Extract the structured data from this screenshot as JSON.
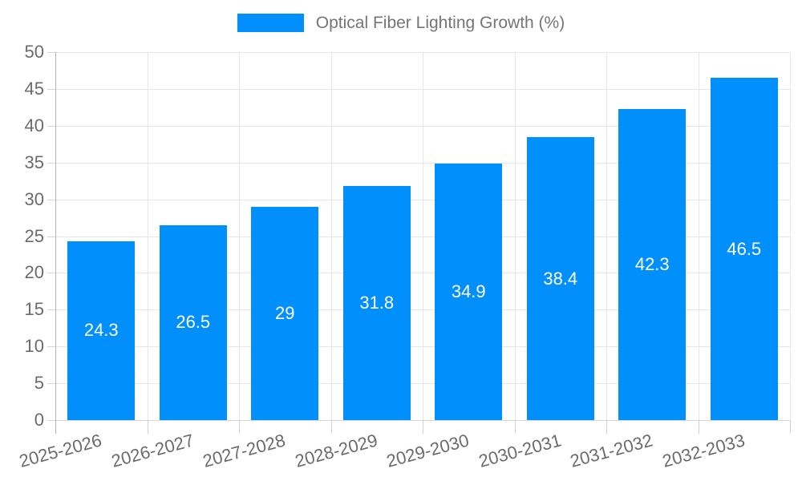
{
  "legend": {
    "label": "Optical Fiber Lighting Growth (%)",
    "swatch_color": "#008FFB"
  },
  "chart_data": {
    "type": "bar",
    "title": "Optical Fiber Lighting Growth (%)",
    "series_name": "Optical Fiber Lighting Growth (%)",
    "categories": [
      "2025-2026",
      "2026-2027",
      "2027-2028",
      "2028-2029",
      "2029-2030",
      "2030-2031",
      "2031-2032",
      "2032-2033"
    ],
    "values": [
      24.3,
      26.5,
      29,
      31.8,
      34.9,
      38.4,
      42.3,
      46.5
    ],
    "data_labels": [
      "24.3",
      "26.5",
      "29",
      "31.8",
      "34.9",
      "38.4",
      "42.3",
      "46.5"
    ],
    "yticks": [
      0,
      5,
      10,
      15,
      20,
      25,
      30,
      35,
      40,
      45,
      50
    ],
    "ylim": [
      0,
      50
    ],
    "ytick_step": 5,
    "xlabel": "",
    "ylabel": "",
    "grid": true,
    "legend_position": "top",
    "bar_color": "#008FFB",
    "data_label_color": "#ffffff",
    "axis_label_color": "#6b6b6b",
    "grid_color": "#e7e7e7"
  }
}
